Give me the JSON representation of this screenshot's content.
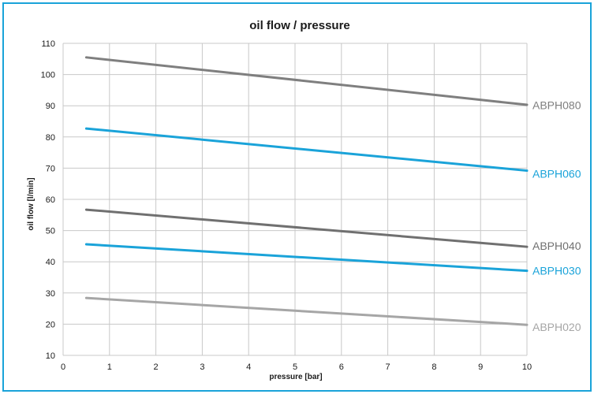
{
  "chart_data": {
    "type": "line",
    "title": "oil flow / pressure",
    "xlabel": "pressure [bar]",
    "ylabel": "oil flow [l/min]",
    "xlim": [
      0,
      10
    ],
    "ylim": [
      10,
      110
    ],
    "x_ticks": [
      "0",
      "1",
      "2",
      "3",
      "4",
      "5",
      "6",
      "7",
      "8",
      "9",
      "10"
    ],
    "y_ticks": [
      "10",
      "20",
      "30",
      "40",
      "50",
      "60",
      "70",
      "80",
      "90",
      "100",
      "110"
    ],
    "grid": true,
    "legend": "labels at right end of each line",
    "series": [
      {
        "name": "ABPH080",
        "color": "#7f7f7f",
        "x": [
          0.5,
          10
        ],
        "y": [
          105.5,
          90.3
        ]
      },
      {
        "name": "ABPH060",
        "color": "#1aa3d9",
        "x": [
          0.5,
          10
        ],
        "y": [
          82.7,
          69.2
        ]
      },
      {
        "name": "ABPH040",
        "color": "#707070",
        "x": [
          0.5,
          10
        ],
        "y": [
          56.7,
          44.8
        ]
      },
      {
        "name": "ABPH030",
        "color": "#1aa3d9",
        "x": [
          0.5,
          10
        ],
        "y": [
          45.6,
          37.1
        ]
      },
      {
        "name": "ABPH020",
        "color": "#a6a6a6",
        "x": [
          0.5,
          10
        ],
        "y": [
          28.4,
          19.8
        ]
      }
    ]
  }
}
